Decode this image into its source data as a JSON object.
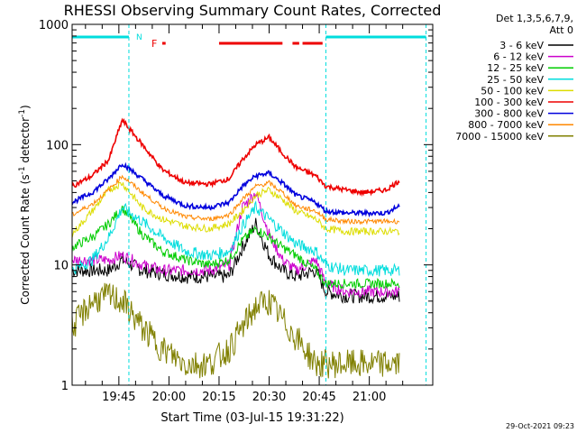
{
  "chart_data": {
    "type": "line",
    "title": "RHESSI Observing Summary Count Rates, Corrected",
    "xlabel": "Start Time (03-Jul-15 19:31:22)",
    "ylabel_main": "Corrected Count Rate (s",
    "ylabel_sup1": "-1",
    "ylabel_mid": " detector",
    "ylabel_sup2": "-1",
    "ylabel_end": ")",
    "yscale": "log",
    "ylim": [
      1,
      1000
    ],
    "xlim_minutes": [
      "19:31",
      "21:19"
    ],
    "y_ticks": [
      "1",
      "10",
      "100",
      "1000"
    ],
    "x_ticks": [
      "19:45",
      "20:00",
      "20:15",
      "20:30",
      "20:45",
      "21:00"
    ],
    "legend_header": [
      "Det 1,3,5,6,7,9,",
      "Att 0"
    ],
    "legend_position": "right",
    "footer": "29-Oct-2021 09:23",
    "annotations": {
      "n_label": "N",
      "f_label": "F",
      "night_intervals": [
        [
          "19:31",
          "19:48"
        ],
        [
          "20:47",
          "21:17"
        ]
      ],
      "flare_segments": [
        [
          "19:58",
          "19:59"
        ],
        [
          "20:15",
          "20:34"
        ],
        [
          "20:37",
          "20:39"
        ],
        [
          "20:40",
          "20:46"
        ]
      ]
    },
    "series": [
      {
        "name": "3 - 6 keV",
        "color": "#000000",
        "x": [
          "19:31",
          "19:37",
          "19:42",
          "19:46",
          "19:52",
          "19:58",
          "20:05",
          "20:12",
          "20:18",
          "20:22",
          "20:26",
          "20:30",
          "20:34",
          "20:38",
          "20:44",
          "20:47",
          "20:53",
          "20:58",
          "21:05",
          "21:09"
        ],
        "y": [
          9,
          9,
          9,
          11,
          9,
          8.5,
          8,
          8,
          8,
          14,
          22,
          12,
          9,
          8,
          9,
          6,
          5.5,
          5.5,
          5.5,
          5.5
        ]
      },
      {
        "name": "6 - 12 keV",
        "color": "#cc00cc",
        "x": [
          "19:31",
          "19:37",
          "19:42",
          "19:46",
          "19:52",
          "19:58",
          "20:05",
          "20:12",
          "20:18",
          "20:22",
          "20:26",
          "20:30",
          "20:34",
          "20:38",
          "20:44",
          "20:47",
          "20:53",
          "20:58",
          "21:05",
          "21:09"
        ],
        "y": [
          11,
          11,
          11,
          12,
          10,
          9,
          9,
          9,
          10,
          30,
          40,
          18,
          11,
          9,
          11,
          7,
          6,
          6,
          6,
          6
        ]
      },
      {
        "name": "12 - 25 keV",
        "color": "#00cc00",
        "x": [
          "19:31",
          "19:37",
          "19:42",
          "19:46",
          "19:52",
          "19:58",
          "20:05",
          "20:12",
          "20:18",
          "20:22",
          "20:26",
          "20:30",
          "20:34",
          "20:38",
          "20:44",
          "20:47",
          "20:53",
          "20:58",
          "21:05",
          "21:09"
        ],
        "y": [
          14,
          17,
          22,
          30,
          18,
          13,
          11,
          10,
          11,
          16,
          20,
          17,
          14,
          12,
          9,
          7,
          7,
          7,
          7,
          7
        ]
      },
      {
        "name": "25 - 50 keV",
        "color": "#00dddd",
        "x": [
          "19:31",
          "19:37",
          "19:42",
          "19:46",
          "19:52",
          "19:58",
          "20:05",
          "20:12",
          "20:18",
          "20:22",
          "20:26",
          "20:30",
          "20:34",
          "20:38",
          "20:44",
          "20:47",
          "20:53",
          "20:58",
          "21:05",
          "21:09"
        ],
        "y": [
          9,
          11,
          17,
          30,
          23,
          17,
          13,
          12,
          13,
          21,
          30,
          24,
          19,
          15,
          13,
          10,
          9,
          9,
          9,
          9
        ]
      },
      {
        "name": "50 - 100 keV",
        "color": "#dddd00",
        "x": [
          "19:31",
          "19:37",
          "19:42",
          "19:46",
          "19:52",
          "19:58",
          "20:05",
          "20:12",
          "20:18",
          "20:22",
          "20:26",
          "20:30",
          "20:34",
          "20:38",
          "20:44",
          "20:47",
          "20:53",
          "20:58",
          "21:05",
          "21:09"
        ],
        "y": [
          18,
          28,
          42,
          48,
          30,
          24,
          21,
          20,
          22,
          28,
          38,
          42,
          35,
          28,
          24,
          20,
          19,
          19,
          19,
          19
        ]
      },
      {
        "name": "100 - 300 keV",
        "color": "#ee0000",
        "x": [
          "19:31",
          "19:37",
          "19:42",
          "19:46",
          "19:52",
          "19:58",
          "20:05",
          "20:12",
          "20:18",
          "20:22",
          "20:26",
          "20:30",
          "20:34",
          "20:38",
          "20:44",
          "20:47",
          "20:53",
          "20:58",
          "21:05",
          "21:09"
        ],
        "y": [
          45,
          55,
          75,
          160,
          100,
          62,
          48,
          47,
          52,
          75,
          100,
          115,
          85,
          65,
          55,
          45,
          42,
          40,
          42,
          50
        ]
      },
      {
        "name": "300 - 800 keV",
        "color": "#0000dd",
        "x": [
          "19:31",
          "19:37",
          "19:42",
          "19:46",
          "19:52",
          "19:58",
          "20:05",
          "20:12",
          "20:18",
          "20:22",
          "20:26",
          "20:30",
          "20:34",
          "20:38",
          "20:44",
          "20:47",
          "20:53",
          "20:58",
          "21:05",
          "21:09"
        ],
        "y": [
          33,
          40,
          52,
          70,
          52,
          38,
          31,
          30,
          33,
          45,
          55,
          58,
          48,
          38,
          33,
          28,
          27,
          27,
          27,
          31
        ]
      },
      {
        "name": "800 - 7000 keV",
        "color": "#ff8800",
        "x": [
          "19:31",
          "19:37",
          "19:42",
          "19:46",
          "19:52",
          "19:58",
          "20:05",
          "20:12",
          "20:18",
          "20:22",
          "20:26",
          "20:30",
          "20:34",
          "20:38",
          "20:44",
          "20:47",
          "20:53",
          "20:58",
          "21:05",
          "21:09"
        ],
        "y": [
          26,
          32,
          42,
          55,
          40,
          30,
          25,
          24,
          26,
          35,
          45,
          48,
          40,
          31,
          28,
          24,
          23,
          23,
          23,
          23
        ]
      },
      {
        "name": "7000 - 15000 keV",
        "color": "#808000",
        "x": [
          "19:31",
          "19:37",
          "19:42",
          "19:46",
          "19:52",
          "19:58",
          "20:05",
          "20:12",
          "20:18",
          "20:22",
          "20:26",
          "20:30",
          "20:34",
          "20:38",
          "20:44",
          "20:47",
          "20:53",
          "20:58",
          "21:05",
          "21:09"
        ],
        "y": [
          3,
          5,
          5.5,
          5,
          3,
          2,
          1.5,
          1.5,
          2,
          3,
          4.5,
          5,
          3.5,
          2.5,
          1.5,
          1.5,
          1.5,
          1.5,
          1.5,
          1.5
        ]
      }
    ]
  }
}
